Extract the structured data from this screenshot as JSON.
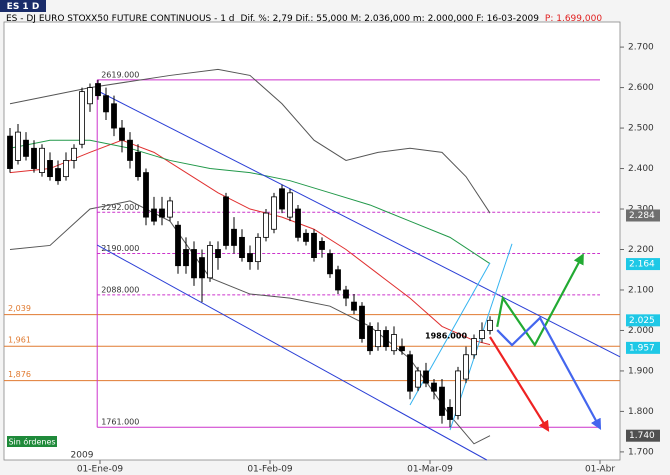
{
  "chart_data": {
    "type": "candlestick",
    "tab": "ES 1 D",
    "title": "ES - DJ EURO STOXX50 FUTURE CONTINUOUS - 1 d",
    "stats": "Dif. %: 2,79 Dif.: 55,000 M: 2.036,000 m: 2.000,000 F: 16-03-2009",
    "last_price": "P: 1.699,000",
    "year_label": "2009",
    "status": "Sin órdenes",
    "ylim": [
      1680,
      2762
    ],
    "yticks": [
      {
        "value": 1700,
        "label": "1.700"
      },
      {
        "value": 1800,
        "label": "1.800"
      },
      {
        "value": 1900,
        "label": "1.900"
      },
      {
        "value": 2000,
        "label": "2.000"
      },
      {
        "value": 2100,
        "label": "2.100"
      },
      {
        "value": 2200,
        "label": "2.200"
      },
      {
        "value": 2300,
        "label": "2.300"
      },
      {
        "value": 2400,
        "label": "2.400"
      },
      {
        "value": 2500,
        "label": "2.500"
      },
      {
        "value": 2600,
        "label": "2.600"
      },
      {
        "value": 2700,
        "label": "2.700"
      }
    ],
    "xlim": [
      -0.75,
      76.25
    ],
    "xticks": [
      {
        "value": 11.25,
        "label": "01-Ene-09"
      },
      {
        "value": 32.5,
        "label": "01-Feb-09"
      },
      {
        "value": 52.5,
        "label": "01-Mar-09"
      },
      {
        "value": 73.75,
        "label": "01-Abr"
      }
    ],
    "open": [
      2480,
      2420,
      2470,
      2450,
      2390,
      2420,
      2400,
      2380,
      2420,
      2460,
      2560,
      2610,
      2580,
      2560,
      2500,
      2470,
      2440,
      2390,
      2300,
      2300,
      2280,
      2260,
      2200,
      2200,
      2180,
      2130,
      2200,
      2330,
      2250,
      2230,
      2190,
      2170,
      2230,
      2250,
      2350,
      2280,
      2300,
      2240,
      2240,
      2220,
      2190,
      2150,
      2100,
      2070,
      2060,
      2010,
      1960,
      2000,
      1950,
      1960,
      1940,
      1860,
      1900,
      1870,
      1860,
      1810,
      1790,
      1880,
      1940,
      1980,
      2000
    ],
    "high": [
      2500,
      2510,
      2490,
      2470,
      2460,
      2440,
      2420,
      2440,
      2460,
      2600,
      2610,
      2619,
      2600,
      2580,
      2520,
      2490,
      2460,
      2400,
      2330,
      2330,
      2330,
      2270,
      2230,
      2220,
      2200,
      2220,
      2220,
      2340,
      2280,
      2250,
      2210,
      2240,
      2300,
      2340,
      2360,
      2350,
      2310,
      2250,
      2250,
      2230,
      2200,
      2160,
      2110,
      2090,
      2070,
      2020,
      2020,
      2010,
      2010,
      1980,
      1950,
      1910,
      1920,
      1880,
      1880,
      1830,
      1910,
      1960,
      1990,
      2020,
      2035
    ],
    "low": [
      2390,
      2410,
      2420,
      2390,
      2380,
      2370,
      2360,
      2370,
      2400,
      2450,
      2540,
      2570,
      2520,
      2480,
      2440,
      2400,
      2370,
      2260,
      2260,
      2260,
      2270,
      2140,
      2140,
      2110,
      2070,
      2120,
      2150,
      2200,
      2190,
      2170,
      2150,
      2150,
      2220,
      2240,
      2290,
      2270,
      2220,
      2210,
      2170,
      2180,
      2130,
      2090,
      2060,
      2040,
      1970,
      1940,
      1950,
      1950,
      1940,
      1940,
      1830,
      1850,
      1860,
      1830,
      1770,
      1761,
      1780,
      1870,
      1930,
      1970,
      1990
    ],
    "close": [
      2400,
      2490,
      2430,
      2400,
      2450,
      2380,
      2370,
      2420,
      2450,
      2590,
      2600,
      2580,
      2540,
      2500,
      2470,
      2420,
      2380,
      2280,
      2270,
      2280,
      2320,
      2160,
      2160,
      2130,
      2130,
      2210,
      2180,
      2210,
      2210,
      2180,
      2170,
      2230,
      2290,
      2330,
      2300,
      2340,
      2230,
      2220,
      2180,
      2200,
      2140,
      2100,
      2080,
      2050,
      1980,
      1950,
      2000,
      1960,
      1990,
      1950,
      1850,
      1900,
      1870,
      1850,
      1790,
      1780,
      1900,
      1940,
      1980,
      2000,
      2025
    ],
    "levels": [
      {
        "value": 2619,
        "label": "2619.000",
        "color": "#cc33cc",
        "style": "solid"
      },
      {
        "value": 2292,
        "label": "2292.000",
        "color": "#cc33cc",
        "style": "dashed"
      },
      {
        "value": 2190,
        "label": "2190.000",
        "color": "#cc33cc",
        "style": "dashed"
      },
      {
        "value": 2088,
        "label": "2088.000",
        "color": "#cc33cc",
        "style": "dashed"
      },
      {
        "value": 1761,
        "label": "1761.000",
        "color": "#cc33cc",
        "style": "solid"
      }
    ],
    "fib_levels": [
      {
        "value": 2039,
        "label": "2,039",
        "color": "#e07a30"
      },
      {
        "value": 1961,
        "label": "1,961",
        "color": "#e07a30"
      },
      {
        "value": 1876,
        "label": "1,876",
        "color": "#e07a30"
      }
    ],
    "price_markers": [
      {
        "value": 2284,
        "label": "2.284",
        "color": "#6e6e6e"
      },
      {
        "value": 2164,
        "label": "2.164",
        "color": "#1ec8e6"
      },
      {
        "value": 2025,
        "label": "2.025",
        "color": "#1ec8e6"
      },
      {
        "value": 1957,
        "label": "1.957",
        "color": "#1ec8e6"
      },
      {
        "value": 1740,
        "label": "1.740",
        "color": "#505050"
      }
    ],
    "annotations": [
      {
        "text": "1986.000",
        "value": 1986
      }
    ],
    "overlays": [
      {
        "color": "#e03030",
        "x": [
          0,
          5,
          10,
          14,
          18,
          22,
          26,
          30,
          34,
          38,
          42,
          46,
          50,
          54,
          58,
          60
        ],
        "values": [
          2390,
          2400,
          2440,
          2470,
          2440,
          2390,
          2340,
          2300,
          2280,
          2250,
          2200,
          2140,
          2080,
          2010,
          1975,
          1965
        ]
      },
      {
        "color": "#22994a",
        "x": [
          0,
          5,
          10,
          15,
          20,
          25,
          30,
          35,
          40,
          45,
          50,
          55,
          60
        ],
        "values": [
          2450,
          2470,
          2470,
          2450,
          2420,
          2400,
          2390,
          2370,
          2340,
          2310,
          2270,
          2230,
          2165
        ]
      },
      {
        "color": "#555555",
        "x": [
          0,
          10,
          20,
          26,
          30,
          34,
          38,
          42,
          46,
          50,
          54,
          57,
          60
        ],
        "values": [
          2560,
          2600,
          2630,
          2645,
          2630,
          2560,
          2470,
          2420,
          2440,
          2450,
          2440,
          2380,
          2290
        ]
      },
      {
        "color": "#555555",
        "x": [
          0,
          5,
          10,
          15,
          20,
          25,
          30,
          35,
          40,
          45,
          50,
          55,
          58,
          60
        ],
        "values": [
          2200,
          2210,
          2300,
          2320,
          2270,
          2130,
          2090,
          2080,
          2060,
          2010,
          1930,
          1790,
          1720,
          1740
        ]
      },
      {
        "color": "#cc33cc",
        "x": [
          10.9,
          10.9
        ],
        "values": [
          2619,
          1761
        ]
      },
      {
        "color": "#2b3fd6",
        "x": [
          10.75,
          76.25
        ],
        "values": [
          2594,
          1935
        ]
      },
      {
        "color": "#2b3fd6",
        "x": [
          10.9,
          59.6
        ],
        "values": [
          2211,
          1680
        ]
      },
      {
        "color": "#35b4f0",
        "x": [
          55,
          62.75
        ],
        "values": [
          1754,
          2214
        ]
      },
      {
        "color": "#35b4f0",
        "x": [
          50,
          60
        ],
        "values": [
          1816,
          2167
        ]
      },
      {
        "color": "#22aa33",
        "x": [
          60.9,
          61.6,
          65.6,
          71.6
        ],
        "values": [
          2009,
          2080,
          1964,
          2186
        ],
        "arrow": true
      },
      {
        "color": "#4466ee",
        "x": [
          60.9,
          62.75,
          66.25,
          73.75
        ],
        "values": [
          2001,
          1964,
          2031,
          1759
        ],
        "arrow": true
      },
      {
        "color": "#ee2222",
        "x": [
          60,
          67.25
        ],
        "values": [
          1984,
          1754
        ],
        "arrow": true
      }
    ]
  }
}
